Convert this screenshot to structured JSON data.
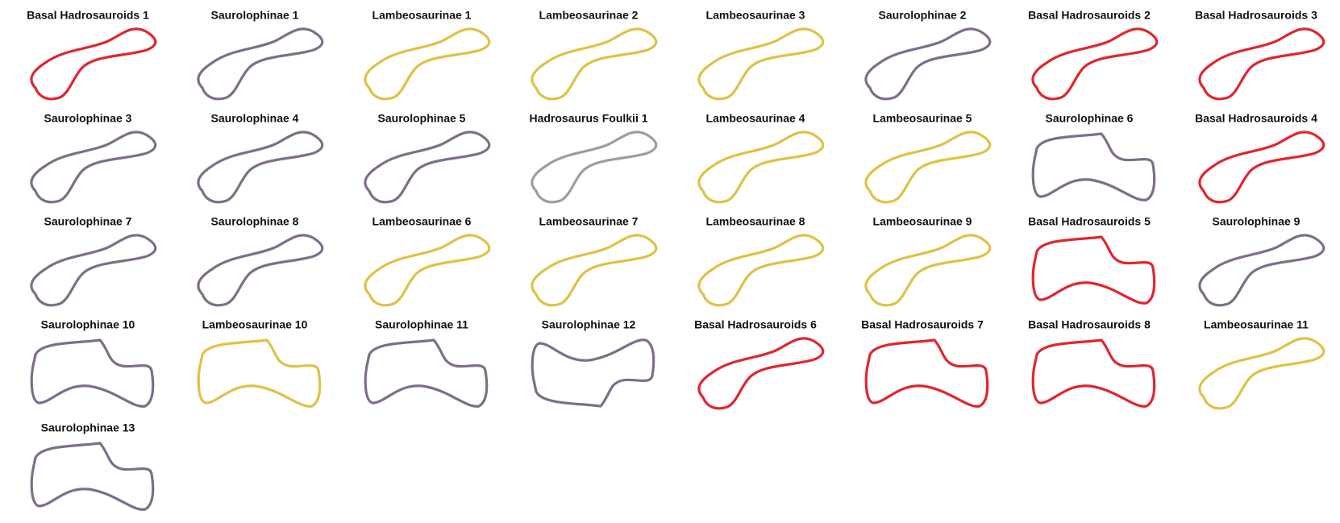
{
  "panels": [
    {
      "label": "Basal Hadrosauroids 1",
      "color": "#e0262e"
    },
    {
      "label": "Saurolophinae 1",
      "color": "#7f6e88"
    },
    {
      "label": "Lambeosaurinae 1",
      "color": "#dfc245"
    },
    {
      "label": "Lambeosaurinae 2",
      "color": "#dfc245"
    },
    {
      "label": "Lambeosaurinae 3",
      "color": "#dfc245"
    },
    {
      "label": "Saurolophinae 2",
      "color": "#7f6e88"
    },
    {
      "label": "Basal Hadrosauroids 2",
      "color": "#e0262e"
    },
    {
      "label": "Basal Hadrosauroids 3",
      "color": "#e0262e"
    },
    {
      "label": "Saurolophinae 3",
      "color": "#7f6e88"
    },
    {
      "label": "Saurolophinae 4",
      "color": "#7f6e88"
    },
    {
      "label": "Saurolophinae 5",
      "color": "#7f6e88"
    },
    {
      "label": "Hadrosaurus Foulkii 1",
      "color": "#9e9e9e"
    },
    {
      "label": "Lambeosaurinae 4",
      "color": "#dfc245"
    },
    {
      "label": "Lambeosaurinae 5",
      "color": "#dfc245"
    },
    {
      "label": "Saurolophinae 6",
      "color": "#7f6e88"
    },
    {
      "label": "Basal Hadrosauroids 4",
      "color": "#e0262e"
    },
    {
      "label": "Saurolophinae 7",
      "color": "#7f6e88"
    },
    {
      "label": "Saurolophinae 8",
      "color": "#7f6e88"
    },
    {
      "label": "Lambeosaurinae 6",
      "color": "#dfc245"
    },
    {
      "label": "Lambeosaurinae 7",
      "color": "#dfc245"
    },
    {
      "label": "Lambeosaurinae 8",
      "color": "#dfc245"
    },
    {
      "label": "Lambeosaurinae 9",
      "color": "#dfc245"
    },
    {
      "label": "Basal Hadrosauroids 5",
      "color": "#e0262e"
    },
    {
      "label": "Saurolophinae 9",
      "color": "#7f6e88"
    },
    {
      "label": "Saurolophinae 10",
      "color": "#7f6e88"
    },
    {
      "label": "Lambeosaurinae 10",
      "color": "#dfc245"
    },
    {
      "label": "Saurolophinae 11",
      "color": "#7f6e88"
    },
    {
      "label": "Saurolophinae 12",
      "color": "#7f6e88"
    },
    {
      "label": "Basal Hadrosauroids 6",
      "color": "#e0262e"
    },
    {
      "label": "Basal Hadrosauroids 7",
      "color": "#e0262e"
    },
    {
      "label": "Basal Hadrosauroids 8",
      "color": "#e0262e"
    },
    {
      "label": "Lambeosaurinae 11",
      "color": "#dfc245"
    },
    {
      "label": "Saurolophinae 13",
      "color": "#7f6e88"
    }
  ]
}
